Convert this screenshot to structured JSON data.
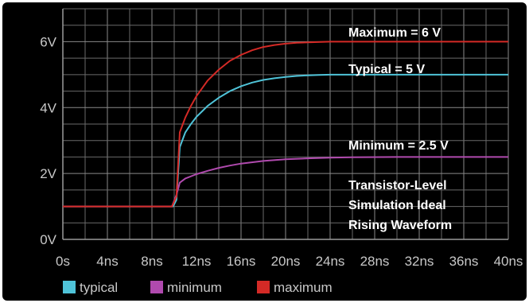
{
  "chart_data": {
    "type": "line",
    "xlabel": "",
    "ylabel": "",
    "xlim": [
      0,
      40
    ],
    "ylim": [
      0,
      7
    ],
    "grid": true,
    "legend_position": "bottom-left",
    "x_ticks": [
      "0s",
      "4ns",
      "8ns",
      "12ns",
      "16ns",
      "20ns",
      "24ns",
      "28ns",
      "32ns",
      "36ns",
      "40ns"
    ],
    "y_ticks": [
      "0V",
      "2V",
      "4V",
      "6V"
    ],
    "series": [
      {
        "name": "typical",
        "color": "#4fc3d8",
        "x": [
          0,
          9.9,
          10.2,
          10.5,
          11,
          11.5,
          12,
          13,
          14,
          15,
          16,
          17,
          18,
          19,
          20,
          21,
          22,
          23,
          24,
          26,
          30,
          40
        ],
        "y": [
          1.0,
          1.0,
          1.2,
          2.8,
          3.25,
          3.5,
          3.72,
          4.05,
          4.3,
          4.5,
          4.65,
          4.76,
          4.84,
          4.89,
          4.93,
          4.96,
          4.98,
          4.99,
          5.0,
          5.0,
          5.0,
          5.0
        ]
      },
      {
        "name": "minimum",
        "color": "#b04aae",
        "x": [
          0,
          9.8,
          10.2,
          10.5,
          11,
          12,
          13,
          14,
          15,
          16,
          18,
          20,
          22,
          24,
          26,
          30,
          40
        ],
        "y": [
          1.0,
          1.0,
          1.35,
          1.72,
          1.85,
          1.98,
          2.08,
          2.17,
          2.24,
          2.3,
          2.38,
          2.43,
          2.46,
          2.48,
          2.49,
          2.5,
          2.5
        ]
      },
      {
        "name": "maximum",
        "color": "#d42a26",
        "x": [
          0,
          9.8,
          10.2,
          10.5,
          11,
          11.5,
          12,
          13,
          14,
          15,
          16,
          17,
          18,
          19,
          20,
          21,
          22,
          24,
          26,
          30,
          40
        ],
        "y": [
          1.0,
          1.0,
          1.3,
          3.25,
          3.7,
          4.05,
          4.35,
          4.82,
          5.15,
          5.42,
          5.6,
          5.74,
          5.84,
          5.9,
          5.94,
          5.97,
          5.98,
          6.0,
          6.0,
          6.0,
          6.0
        ]
      }
    ],
    "annotations": [
      "Maximum = 6 V",
      "Typical = 5 V",
      "Minimum = 2.5 V",
      "Transistor-Level",
      "Simulation Ideal",
      "Rising Waveform"
    ]
  }
}
